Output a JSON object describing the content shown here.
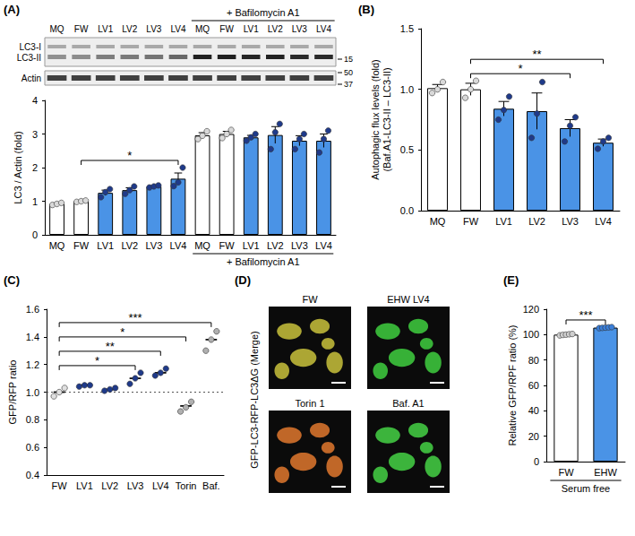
{
  "chart_data": [
    {
      "panel": "(A)",
      "type": "bar",
      "categories": [
        "MQ",
        "FW",
        "LV1",
        "LV2",
        "LV3",
        "LV4",
        "MQ",
        "FW",
        "LV1",
        "LV2",
        "LV3",
        "LV4"
      ],
      "values": [
        0.92,
        1.0,
        1.25,
        1.33,
        1.44,
        1.67,
        2.96,
        3.0,
        2.9,
        2.97,
        2.8,
        2.8
      ],
      "errors": [
        0.03,
        0.02,
        0.08,
        0.07,
        0.02,
        0.17,
        0.08,
        0.08,
        0.06,
        0.25,
        0.15,
        0.2
      ],
      "points": [
        [
          0.89,
          0.92,
          0.95
        ],
        [
          0.98,
          1.0,
          1.02
        ],
        [
          1.12,
          1.27,
          1.36
        ],
        [
          1.22,
          1.33,
          1.44
        ],
        [
          1.41,
          1.44,
          1.47
        ],
        [
          1.45,
          1.56,
          2.0
        ],
        [
          2.85,
          2.95,
          3.08
        ],
        [
          2.88,
          3.0,
          3.12
        ],
        [
          2.8,
          2.9,
          3.0
        ],
        [
          2.55,
          3.05,
          3.3
        ],
        [
          2.55,
          2.85,
          3.0
        ],
        [
          2.45,
          2.85,
          3.1
        ]
      ],
      "colors": [
        "#ffffff",
        "#ffffff",
        "#4a93e6",
        "#4a93e6",
        "#4a93e6",
        "#4a93e6",
        "#ffffff",
        "#ffffff",
        "#4a93e6",
        "#4a93e6",
        "#4a93e6",
        "#4a93e6"
      ],
      "point_colors": [
        "#d9d9d9",
        "#d9d9d9",
        "#1f3a8a",
        "#1f3a8a",
        "#1f3a8a",
        "#1f3a8a",
        "#d9d9d9",
        "#d9d9d9",
        "#1f3a8a",
        "#1f3a8a",
        "#1f3a8a",
        "#1f3a8a"
      ],
      "ylabel": "LC3 / Actin (fold)",
      "ylim": [
        0,
        4
      ],
      "yticks": [
        0,
        1,
        2,
        3,
        4
      ],
      "grid": false,
      "groups": [
        {
          "label": "+ Bafilomycin A1",
          "from": 6,
          "to": 11
        }
      ],
      "significance": [
        {
          "from": 1,
          "to": 5,
          "label": "*"
        }
      ]
    },
    {
      "panel": "(B)",
      "type": "bar",
      "categories": [
        "MQ",
        "FW",
        "LV1",
        "LV2",
        "LV3",
        "LV4"
      ],
      "values": [
        1.01,
        1.0,
        0.84,
        0.82,
        0.68,
        0.56
      ],
      "errors": [
        0.03,
        0.05,
        0.06,
        0.15,
        0.07,
        0.03
      ],
      "points": [
        [
          0.97,
          1.0,
          1.06
        ],
        [
          0.93,
          1.0,
          1.07
        ],
        [
          0.75,
          0.83,
          0.94
        ],
        [
          0.6,
          0.8,
          1.06
        ],
        [
          0.57,
          0.7,
          0.77
        ],
        [
          0.51,
          0.57,
          0.6
        ]
      ],
      "colors": [
        "#ffffff",
        "#ffffff",
        "#4a93e6",
        "#4a93e6",
        "#4a93e6",
        "#4a93e6"
      ],
      "point_colors": [
        "#d9d9d9",
        "#d9d9d9",
        "#1f3a8a",
        "#1f3a8a",
        "#1f3a8a",
        "#1f3a8a"
      ],
      "ylabel": "Autophagic flux levels (fold)\n(Baf.A1-LC3-II – LC3-II)",
      "ylim": [
        0,
        1.5
      ],
      "yticks": [
        {
          "value": 0,
          "label": "0.0"
        },
        0.5,
        {
          "value": 1,
          "label": "1.0"
        },
        1.5
      ],
      "grid": false,
      "significance": [
        {
          "from": 1,
          "to": 4,
          "label": "*"
        },
        {
          "from": 1,
          "to": 5,
          "label": "**"
        }
      ]
    },
    {
      "panel": "(C)",
      "type": "scatter",
      "categories": [
        "FW",
        "LV1",
        "LV2",
        "LV3",
        "LV4",
        "Torin",
        "Baf."
      ],
      "values": [
        1.0,
        1.05,
        1.02,
        1.1,
        1.14,
        0.9,
        1.38
      ],
      "points": [
        [
          0.97,
          1.0,
          1.03
        ],
        [
          1.04,
          1.05,
          1.05
        ],
        [
          1.01,
          1.02,
          1.03
        ],
        [
          1.06,
          1.1,
          1.14
        ],
        [
          1.12,
          1.14,
          1.17
        ],
        [
          0.86,
          0.89,
          0.93
        ],
        [
          1.3,
          1.38,
          1.44
        ]
      ],
      "point_colors": [
        "#e0e0e0",
        "#1f3a8a",
        "#1f3a8a",
        "#1f3a8a",
        "#1f3a8a",
        "#b0b0b0",
        "#b0b0b0"
      ],
      "ylabel": "GFP/RFP ratio",
      "ylim": [
        0.4,
        1.6
      ],
      "yticks": [
        0.4,
        0.6,
        0.8,
        {
          "value": 1,
          "label": "1.0"
        },
        1.2,
        1.4,
        1.6
      ],
      "grid": false,
      "reference_line": 1,
      "significance": [
        {
          "from": 0,
          "to": 3,
          "label": "*"
        },
        {
          "from": 0,
          "to": 4,
          "label": "**"
        },
        {
          "from": 0,
          "to": 5,
          "label": "*"
        },
        {
          "from": 0,
          "to": 6,
          "label": "***"
        }
      ]
    },
    {
      "panel": "(E)",
      "type": "bar",
      "categories": [
        "FW",
        "EHW"
      ],
      "values": [
        100,
        105.5
      ],
      "errors": [
        0.5,
        0.3
      ],
      "points": [
        [
          99.4,
          99.8,
          100,
          100.3,
          100.5
        ],
        [
          105.1,
          105.3,
          105.5,
          105.7,
          105.9
        ]
      ],
      "colors": [
        "#ffffff",
        "#4a93e6"
      ],
      "point_colors": [
        "#cfcfcf",
        "#3b7fd9"
      ],
      "ylabel": "Relative GFP/RPF ratio (%)",
      "xlabel": "Serum free",
      "ylim": [
        0,
        120
      ],
      "yticks": [
        0,
        20,
        40,
        60,
        80,
        100,
        120
      ],
      "grid": false,
      "significance": [
        {
          "from": 0,
          "to": 1,
          "label": "***"
        }
      ]
    }
  ],
  "blot": {
    "header": {
      "label": "+ Bafilomycin A1",
      "from": 6,
      "to": 11
    },
    "lanes": [
      "MQ",
      "FW",
      "LV1",
      "LV2",
      "LV3",
      "LV4",
      "MQ",
      "FW",
      "LV1",
      "LV2",
      "LV3",
      "LV4"
    ],
    "lc3_bands": [
      "LC3-I",
      "LC3-II"
    ],
    "lc3_markers": [
      15
    ],
    "actin_label": "Actin",
    "actin_markers": [
      50,
      37
    ]
  },
  "micrographs": {
    "panel": "(D)",
    "label": "GFP-LC3-RFP-LC3ΔG (Merge)",
    "images": [
      {
        "title": "FW",
        "color": "#c9c23c"
      },
      {
        "title": "EHW LV4",
        "color": "#3fcf3f"
      },
      {
        "title": "Torin 1",
        "color": "#e0782e"
      },
      {
        "title": "Baf. A1",
        "color": "#45d245"
      }
    ]
  }
}
